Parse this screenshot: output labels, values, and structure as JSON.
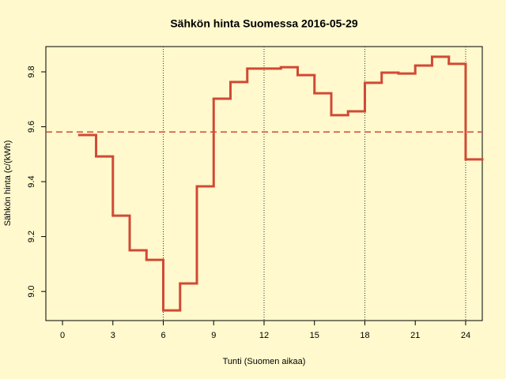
{
  "chart_data": {
    "type": "step",
    "title": "Sähkön hinta Suomessa 2016-05-29",
    "x_label": "Tunti (Suomen aikaa)",
    "y_label": "Sähkön hinta (c/(kWh)",
    "x": [
      1,
      2,
      3,
      4,
      5,
      6,
      7,
      8,
      9,
      10,
      11,
      12,
      13,
      14,
      15,
      16,
      17,
      18,
      19,
      20,
      21,
      22,
      23,
      24
    ],
    "series": [
      {
        "name": "hinta",
        "color": "#d04a35",
        "values": [
          9.57,
          9.492,
          9.276,
          9.15,
          9.115,
          8.931,
          9.029,
          9.383,
          9.702,
          9.763,
          9.812,
          9.812,
          9.817,
          9.788,
          9.722,
          9.642,
          9.656,
          9.76,
          9.797,
          9.794,
          9.823,
          9.855,
          9.829,
          9.481
        ]
      }
    ],
    "mean_line": 9.581,
    "vlines": [
      6,
      12,
      18,
      24
    ],
    "xlim": [
      -0.99,
      24.99
    ],
    "ylim": [
      8.894,
      9.892
    ],
    "xticks": [
      0,
      3,
      6,
      9,
      12,
      15,
      18,
      21,
      24
    ],
    "yticks": [
      {
        "value": 9,
        "label": "9.0"
      },
      9.2,
      9.4,
      9.6,
      9.8
    ]
  }
}
